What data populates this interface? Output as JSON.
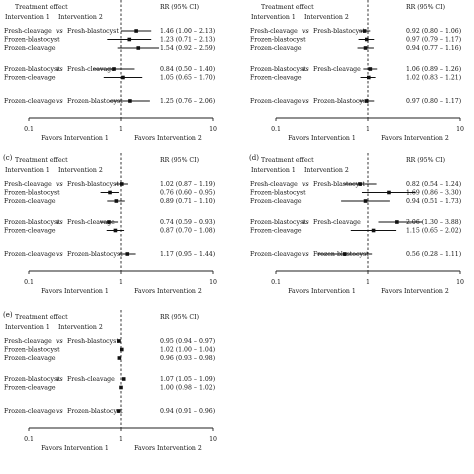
{
  "chart_data": [
    {
      "type": "forest",
      "panel_label": "",
      "header": {
        "effect": "Treatment effect",
        "int1": "Intervention 1",
        "int2": "Intervention 2",
        "rr": "RR (95% CI)"
      },
      "vs": "vs",
      "xscale": "log",
      "xlim": [
        0.1,
        10
      ],
      "xticks": [
        "0.1",
        "1",
        "10"
      ],
      "xlabel_left": "Favors Intervention 1",
      "xlabel_right": "Favors Intervention 2",
      "rows": [
        {
          "g": 0,
          "t1": "Fresh-cleavage",
          "t2": "Fresh-blastocyst",
          "rr": 1.46,
          "lo": 1.0,
          "hi": 2.13,
          "label": "1.46 (1.00 – 2.13)"
        },
        {
          "g": 0,
          "t1": "Frozen-blastocyst",
          "t2": "",
          "rr": 1.23,
          "lo": 0.71,
          "hi": 2.13,
          "label": "1.23 (0.71 – 2.13)"
        },
        {
          "g": 0,
          "t1": "Frozen-cleavage",
          "t2": "",
          "rr": 1.54,
          "lo": 0.92,
          "hi": 2.59,
          "label": "1.54 (0.92 – 2.59)"
        },
        {
          "g": 1,
          "t1": "Frozen-blastocyst",
          "t2": "Fresh-cleavage",
          "rr": 0.84,
          "lo": 0.5,
          "hi": 1.4,
          "label": "0.84 (0.50 – 1.40)"
        },
        {
          "g": 1,
          "t1": "Frozen-cleavage",
          "t2": "",
          "rr": 1.05,
          "lo": 0.65,
          "hi": 1.7,
          "label": "1.05 (0.65 – 1.70)"
        },
        {
          "g": 2,
          "t1": "Frozen-cleavage",
          "t2": "Frozen-blastocyst",
          "rr": 1.25,
          "lo": 0.76,
          "hi": 2.06,
          "label": "1.25 (0.76 – 2.06)"
        }
      ]
    },
    {
      "type": "forest",
      "panel_label": "",
      "header": {
        "effect": "Treatment effect",
        "int1": "Intervention 1",
        "int2": "Intervention 2",
        "rr": "RR (95% CI)"
      },
      "vs": "vs",
      "xscale": "log",
      "xlim": [
        0.1,
        10
      ],
      "xticks": [
        "0.1",
        "1",
        "10"
      ],
      "xlabel_left": "Favors Intervention 1",
      "xlabel_right": "Favors Intervention 2",
      "rows": [
        {
          "g": 0,
          "t1": "Fresh-cleavage",
          "t2": "Fresh-blastocyst",
          "rr": 0.92,
          "lo": 0.8,
          "hi": 1.06,
          "label": "0.92 (0.80 – 1.06)"
        },
        {
          "g": 0,
          "t1": "Frozen-blastocyst",
          "t2": "",
          "rr": 0.97,
          "lo": 0.79,
          "hi": 1.17,
          "label": "0.97 (0.79 – 1.17)"
        },
        {
          "g": 0,
          "t1": "Frozen-cleavage",
          "t2": "",
          "rr": 0.94,
          "lo": 0.77,
          "hi": 1.16,
          "label": "0.94 (0.77 – 1.16)"
        },
        {
          "g": 1,
          "t1": "Frozen-blastocyst",
          "t2": "Fresh-cleavage",
          "rr": 1.06,
          "lo": 0.89,
          "hi": 1.26,
          "label": "1.06 (0.89 – 1.26)"
        },
        {
          "g": 1,
          "t1": "Frozen-cleavage",
          "t2": "",
          "rr": 1.02,
          "lo": 0.83,
          "hi": 1.21,
          "label": "1.02 (0.83 – 1.21)"
        },
        {
          "g": 2,
          "t1": "Frozen-cleavage",
          "t2": "Frozen-blastocyst",
          "rr": 0.97,
          "lo": 0.8,
          "hi": 1.17,
          "label": "0.97 (0.80 – 1.17)"
        }
      ]
    },
    {
      "type": "forest",
      "panel_label": "(c)",
      "header": {
        "effect": "Treatment effect",
        "int1": "Intervention 1",
        "int2": "Intervention 2",
        "rr": "RR (95% CI)"
      },
      "vs": "vs",
      "xscale": "log",
      "xlim": [
        0.1,
        10
      ],
      "xticks": [
        "0.1",
        "1",
        "10"
      ],
      "xlabel_left": "Favors Intervention 1",
      "xlabel_right": "Favors Intervention 2",
      "rows": [
        {
          "g": 0,
          "t1": "Fresh-cleavage",
          "t2": "Fresh-blastocyst",
          "rr": 1.02,
          "lo": 0.87,
          "hi": 1.19,
          "label": "1.02 (0.87 – 1.19)"
        },
        {
          "g": 0,
          "t1": "Frozen-blastocyst",
          "t2": "",
          "rr": 0.76,
          "lo": 0.6,
          "hi": 0.95,
          "label": "0.76 (0.60 – 0.95)"
        },
        {
          "g": 0,
          "t1": "Frozen-cleavage",
          "t2": "",
          "rr": 0.89,
          "lo": 0.71,
          "hi": 1.1,
          "label": "0.89 (0.71 – 1.10)"
        },
        {
          "g": 1,
          "t1": "Frozen-blastocyst",
          "t2": "Fresh-cleavage",
          "rr": 0.74,
          "lo": 0.59,
          "hi": 0.93,
          "label": "0.74 (0.59 – 0.93)"
        },
        {
          "g": 1,
          "t1": "Frozen-cleavage",
          "t2": "",
          "rr": 0.87,
          "lo": 0.7,
          "hi": 1.08,
          "label": "0.87 (0.70 – 1.08)"
        },
        {
          "g": 2,
          "t1": "Frozen-cleavage",
          "t2": "Frozen-blastocyst",
          "rr": 1.17,
          "lo": 0.95,
          "hi": 1.44,
          "label": "1.17 (0.95 – 1.44)"
        }
      ]
    },
    {
      "type": "forest",
      "panel_label": "(d)",
      "header": {
        "effect": "Treatment effect",
        "int1": "Intervention 1",
        "int2": "Intervention 2",
        "rr": "RR (95% CI)"
      },
      "vs": "vs",
      "xscale": "log",
      "xlim": [
        0.1,
        10
      ],
      "xticks": [
        "0.1",
        "1",
        "10"
      ],
      "xlabel_left": "Favors Intervention 1",
      "xlabel_right": "Favors Intervention 2",
      "rows": [
        {
          "g": 0,
          "t1": "Fresh-cleavage",
          "t2": "Fresh-blastocyst",
          "rr": 0.82,
          "lo": 0.54,
          "hi": 1.24,
          "label": "0.82 (0.54 – 1.24)"
        },
        {
          "g": 0,
          "t1": "Frozen-blastocyst",
          "t2": "",
          "rr": 1.69,
          "lo": 0.86,
          "hi": 3.3,
          "label": "1.69 (0.86 – 3.30)"
        },
        {
          "g": 0,
          "t1": "Frozen-cleavage",
          "t2": "",
          "rr": 0.94,
          "lo": 0.51,
          "hi": 1.73,
          "label": "0.94 (0.51 – 1.73)"
        },
        {
          "g": 1,
          "t1": "Frozen-blastocyst",
          "t2": "Fresh-cleavage",
          "rr": 2.06,
          "lo": 1.3,
          "hi": 3.88,
          "label": "2.06 (1.30 – 3.88)"
        },
        {
          "g": 1,
          "t1": "Frozen-cleavage",
          "t2": "",
          "rr": 1.15,
          "lo": 0.65,
          "hi": 2.02,
          "label": "1.15 (0.65 – 2.02)"
        },
        {
          "g": 2,
          "t1": "Frozen-cleavage",
          "t2": "Frozen-blastocyst",
          "rr": 0.56,
          "lo": 0.28,
          "hi": 1.11,
          "label": "0.56 (0.28 – 1.11)"
        }
      ]
    },
    {
      "type": "forest",
      "panel_label": "(e)",
      "header": {
        "effect": "Treatment effect",
        "int1": "Intervention 1",
        "int2": "Intervention 2",
        "rr": "RR (95% CI)"
      },
      "vs": "vs",
      "xscale": "log",
      "xlim": [
        0.1,
        10
      ],
      "xticks": [
        "0.1",
        "1",
        "10"
      ],
      "xlabel_left": "Favors Intervention 1",
      "xlabel_right": "Favors Intervention 2",
      "rows": [
        {
          "g": 0,
          "t1": "Fresh-cleavage",
          "t2": "Fresh-blastocyst",
          "rr": 0.95,
          "lo": 0.94,
          "hi": 0.97,
          "label": "0.95 (0.94 – 0.97)"
        },
        {
          "g": 0,
          "t1": "Frozen-blastocyst",
          "t2": "",
          "rr": 1.02,
          "lo": 1.0,
          "hi": 1.04,
          "label": "1.02 (1.00 – 1.04)"
        },
        {
          "g": 0,
          "t1": "Frozen-cleavage",
          "t2": "",
          "rr": 0.96,
          "lo": 0.93,
          "hi": 0.98,
          "label": "0.96 (0.93 – 0.98)"
        },
        {
          "g": 1,
          "t1": "Frozen-blastocyst",
          "t2": "Fresh-cleavage",
          "rr": 1.07,
          "lo": 1.05,
          "hi": 1.09,
          "label": "1.07 (1.05 – 1.09)"
        },
        {
          "g": 1,
          "t1": "Frozen-cleavage",
          "t2": "",
          "rr": 1.0,
          "lo": 0.98,
          "hi": 1.02,
          "label": "1.00 (0.98 – 1.02)"
        },
        {
          "g": 2,
          "t1": "Frozen-cleavage",
          "t2": "Frozen-blastocyst",
          "rr": 0.94,
          "lo": 0.91,
          "hi": 0.96,
          "label": "0.94 (0.91 – 0.96)"
        }
      ]
    }
  ]
}
